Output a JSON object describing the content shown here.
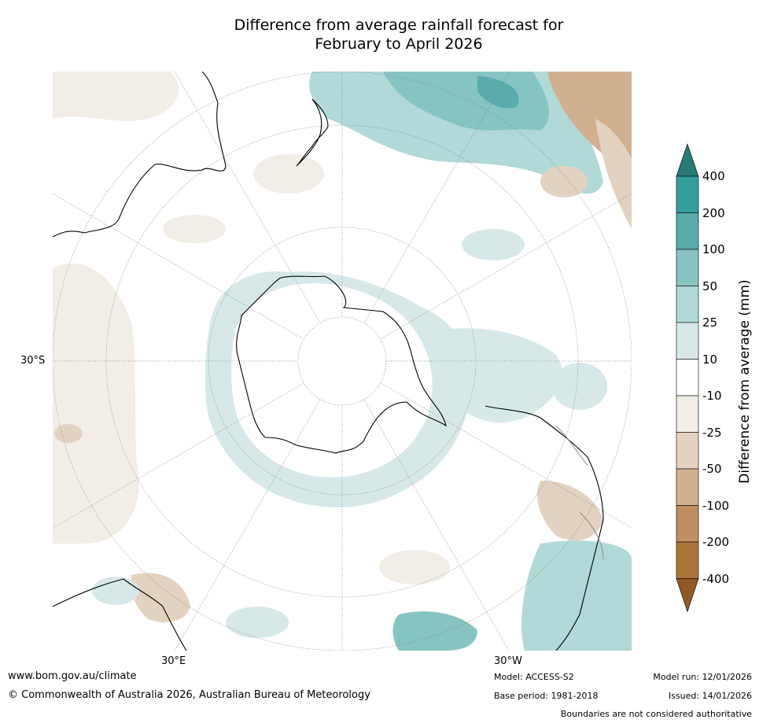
{
  "title": {
    "line1": "Difference from average rainfall forecast for",
    "line2": "February to April 2026"
  },
  "map": {
    "lat_label": "30°S",
    "lon_labels": [
      "30°E",
      "30°W"
    ],
    "colors": {
      "coast": "#000000",
      "borders": "#888888",
      "grid": "#777777"
    }
  },
  "colorbar": {
    "label": "Difference from average (mm)",
    "ticks": [
      "400",
      "200",
      "100",
      "50",
      "25",
      "10",
      "-10",
      "-25",
      "-50",
      "-100",
      "-200",
      "-400"
    ],
    "colors": [
      "#267a78",
      "#339e9b",
      "#5aacab",
      "#86c4c1",
      "#b0d9d7",
      "#d6e9e8",
      "#ffffff",
      "#f2ede7",
      "#e4d2c1",
      "#d1b08f",
      "#bf8f61",
      "#ad7438",
      "#8f5a23"
    ]
  },
  "footer": {
    "website": "www.bom.gov.au/climate",
    "copyright": "© Commonwealth of Australia 2026, Australian Bureau of Meteorology",
    "model": "Model: ACCESS-S2",
    "base_period": "Base period: 1981-2018",
    "model_run": "Model run: 12/01/2026",
    "issued": "Issued: 14/01/2026",
    "disclaimer": "Boundaries are not considered authoritative"
  }
}
